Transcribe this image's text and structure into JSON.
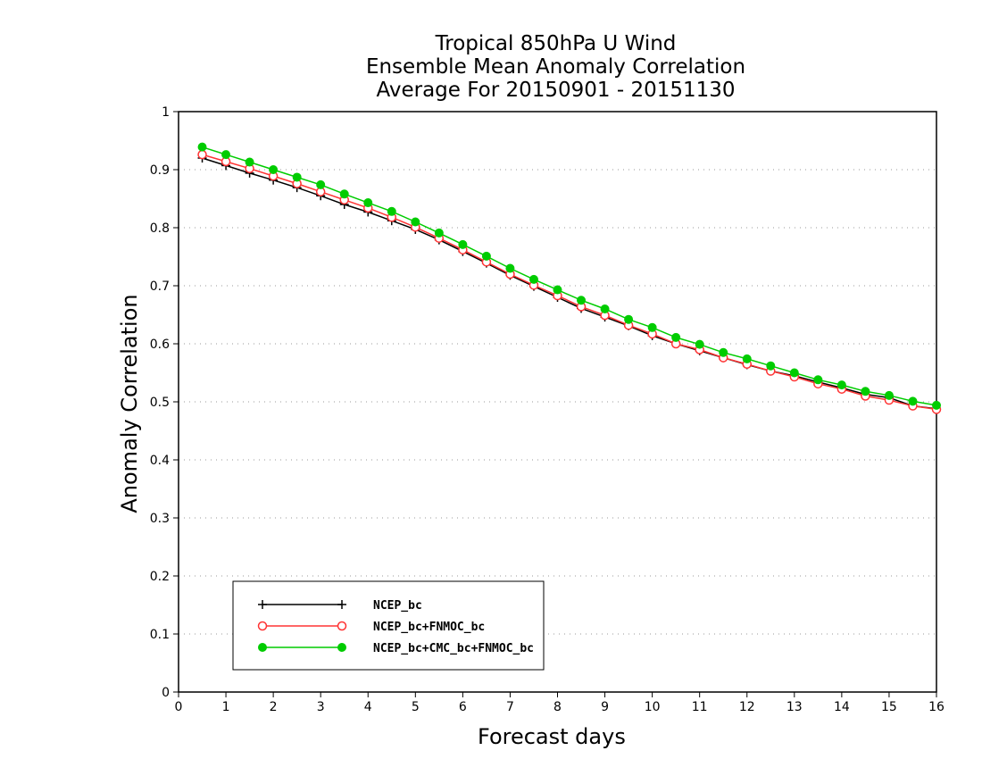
{
  "chart_data": {
    "type": "line",
    "title_lines": [
      "Tropical 850hPa U Wind",
      "Ensemble Mean Anomaly Correlation",
      "Average For 20150901 - 20151130"
    ],
    "xlabel": "Forecast days",
    "ylabel": "Anomaly Correlation",
    "xlim": [
      0,
      16
    ],
    "ylim": [
      0,
      1
    ],
    "x_ticks": [
      "0",
      "1",
      "2",
      "3",
      "4",
      "5",
      "6",
      "7",
      "8",
      "9",
      "10",
      "11",
      "12",
      "13",
      "14",
      "15",
      "16"
    ],
    "y_ticks": [
      "0",
      "0.1",
      "0.2",
      "0.3",
      "0.4",
      "0.5",
      "0.6",
      "0.7",
      "0.8",
      "0.9",
      "1"
    ],
    "grid": "horizontal dotted",
    "legend_position": "bottom-left",
    "x": [
      0.5,
      1,
      1.5,
      2,
      2.5,
      3,
      3.5,
      4,
      4.5,
      5,
      5.5,
      6,
      6.5,
      7,
      7.5,
      8,
      8.5,
      9,
      9.5,
      10,
      10.5,
      11,
      11.5,
      12,
      12.5,
      13,
      13.5,
      14,
      14.5,
      15,
      15.5,
      16
    ],
    "series": [
      {
        "name": "NCEP_bc",
        "color": "#000000",
        "marker": "plus",
        "values": [
          0.92,
          0.907,
          0.894,
          0.882,
          0.869,
          0.855,
          0.84,
          0.827,
          0.812,
          0.797,
          0.779,
          0.759,
          0.739,
          0.718,
          0.699,
          0.68,
          0.661,
          0.646,
          0.631,
          0.614,
          0.6,
          0.588,
          0.576,
          0.564,
          0.553,
          0.545,
          0.534,
          0.524,
          0.513,
          0.507,
          0.493,
          0.488
        ]
      },
      {
        "name": "NCEP_bc+FNMOC_bc",
        "color": "#ff3333",
        "marker": "open-circle",
        "values": [
          0.926,
          0.914,
          0.902,
          0.889,
          0.876,
          0.862,
          0.848,
          0.834,
          0.818,
          0.801,
          0.782,
          0.762,
          0.741,
          0.72,
          0.701,
          0.683,
          0.664,
          0.649,
          0.632,
          0.617,
          0.6,
          0.59,
          0.576,
          0.565,
          0.553,
          0.543,
          0.531,
          0.522,
          0.51,
          0.503,
          0.493,
          0.487
        ]
      },
      {
        "name": "NCEP_bc+CMC_bc+FNMOC_bc",
        "color": "#00cc00",
        "marker": "filled-circle",
        "values": [
          0.939,
          0.926,
          0.913,
          0.9,
          0.887,
          0.874,
          0.858,
          0.843,
          0.828,
          0.81,
          0.791,
          0.771,
          0.751,
          0.73,
          0.711,
          0.693,
          0.675,
          0.66,
          0.642,
          0.628,
          0.611,
          0.599,
          0.585,
          0.574,
          0.562,
          0.55,
          0.538,
          0.529,
          0.518,
          0.511,
          0.501,
          0.494
        ]
      }
    ]
  }
}
